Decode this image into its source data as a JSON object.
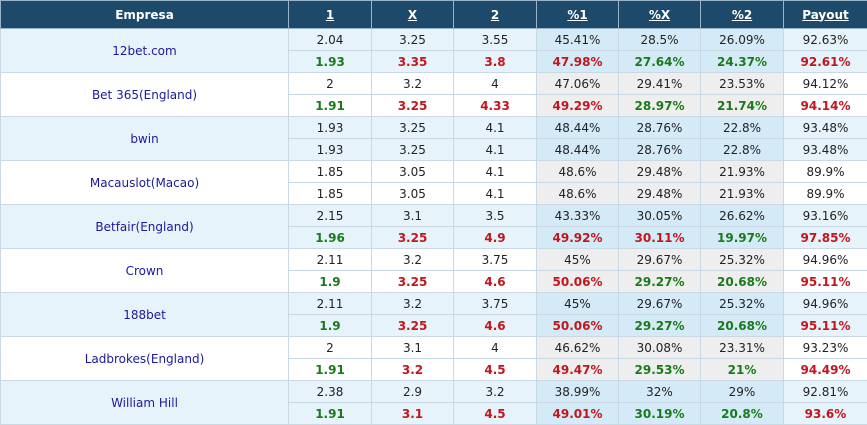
{
  "headers": {
    "empresa": "Empresa",
    "h1": "1",
    "hx": "X",
    "h2": "2",
    "p1": "%1",
    "px": "%X",
    "p2": "%2",
    "payout": "Payout"
  },
  "colors": {
    "header_bg": "#1d4a6b",
    "name_text": "#1a1a9a",
    "up": "#1a7a1a",
    "down": "#c0161c"
  },
  "bookmakers": [
    {
      "name": "12bet.com",
      "open": [
        "2.04",
        "3.25",
        "3.55",
        "45.41%",
        "28.5%",
        "26.09%",
        "92.63%"
      ],
      "live": [
        "1.93",
        "3.35",
        "3.8",
        "47.98%",
        "27.64%",
        "24.37%",
        "92.61%"
      ],
      "live_trend": [
        "up",
        "down",
        "down",
        "down",
        "up",
        "up",
        "down"
      ]
    },
    {
      "name": "Bet 365(England)",
      "open": [
        "2",
        "3.2",
        "4",
        "47.06%",
        "29.41%",
        "23.53%",
        "94.12%"
      ],
      "live": [
        "1.91",
        "3.25",
        "4.33",
        "49.29%",
        "28.97%",
        "21.74%",
        "94.14%"
      ],
      "live_trend": [
        "up",
        "down",
        "down",
        "down",
        "up",
        "up",
        "down"
      ]
    },
    {
      "name": "bwin",
      "open": [
        "1.93",
        "3.25",
        "4.1",
        "48.44%",
        "28.76%",
        "22.8%",
        "93.48%"
      ],
      "live": [
        "1.93",
        "3.25",
        "4.1",
        "48.44%",
        "28.76%",
        "22.8%",
        "93.48%"
      ],
      "live_trend": [
        "",
        "",
        "",
        "",
        "",
        "",
        ""
      ]
    },
    {
      "name": "Macauslot(Macao)",
      "open": [
        "1.85",
        "3.05",
        "4.1",
        "48.6%",
        "29.48%",
        "21.93%",
        "89.9%"
      ],
      "live": [
        "1.85",
        "3.05",
        "4.1",
        "48.6%",
        "29.48%",
        "21.93%",
        "89.9%"
      ],
      "live_trend": [
        "",
        "",
        "",
        "",
        "",
        "",
        ""
      ]
    },
    {
      "name": "Betfair(England)",
      "open": [
        "2.15",
        "3.1",
        "3.5",
        "43.33%",
        "30.05%",
        "26.62%",
        "93.16%"
      ],
      "live": [
        "1.96",
        "3.25",
        "4.9",
        "49.92%",
        "30.11%",
        "19.97%",
        "97.85%"
      ],
      "live_trend": [
        "up",
        "down",
        "down",
        "down",
        "down",
        "up",
        "down"
      ]
    },
    {
      "name": "Crown",
      "open": [
        "2.11",
        "3.2",
        "3.75",
        "45%",
        "29.67%",
        "25.32%",
        "94.96%"
      ],
      "live": [
        "1.9",
        "3.25",
        "4.6",
        "50.06%",
        "29.27%",
        "20.68%",
        "95.11%"
      ],
      "live_trend": [
        "up",
        "down",
        "down",
        "down",
        "up",
        "up",
        "down"
      ]
    },
    {
      "name": "188bet",
      "open": [
        "2.11",
        "3.2",
        "3.75",
        "45%",
        "29.67%",
        "25.32%",
        "94.96%"
      ],
      "live": [
        "1.9",
        "3.25",
        "4.6",
        "50.06%",
        "29.27%",
        "20.68%",
        "95.11%"
      ],
      "live_trend": [
        "up",
        "down",
        "down",
        "down",
        "up",
        "up",
        "down"
      ]
    },
    {
      "name": "Ladbrokes(England)",
      "open": [
        "2",
        "3.1",
        "4",
        "46.62%",
        "30.08%",
        "23.31%",
        "93.23%"
      ],
      "live": [
        "1.91",
        "3.2",
        "4.5",
        "49.47%",
        "29.53%",
        "21%",
        "94.49%"
      ],
      "live_trend": [
        "up",
        "down",
        "down",
        "down",
        "up",
        "up",
        "down"
      ]
    },
    {
      "name": "William Hill",
      "open": [
        "2.38",
        "2.9",
        "3.2",
        "38.99%",
        "32%",
        "29%",
        "92.81%"
      ],
      "live": [
        "1.91",
        "3.1",
        "4.5",
        "49.01%",
        "30.19%",
        "20.8%",
        "93.6%"
      ],
      "live_trend": [
        "up",
        "down",
        "down",
        "down",
        "up",
        "up",
        "down"
      ]
    }
  ]
}
